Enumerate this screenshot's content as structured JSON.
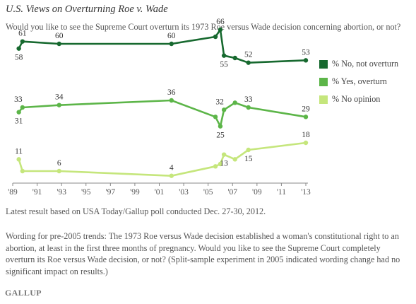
{
  "title": "U.S. Views on Overturning Roe v. Wade",
  "subtitle": "Would you like to see the Supreme Court overturn its 1973 Roe versus Wade decision concerning abortion, or not?",
  "note_latest": "Latest result based on USA Today/Gallup poll conducted Dec. 27-30, 2012.",
  "note_wording": "Wording for pre-2005 trends: The 1973 Roe versus Wade decision established a woman's constitutional right to an abortion, at least in the first three months of pregnancy. Would you like to see the Supreme Court completely overturn its Roe versus Wade decision, or not? (Split-sample experiment in 2005 indicated wording change had no significant impact on results.)",
  "brand": "GALLUP",
  "chart_data": {
    "type": "line",
    "x_tick_labels": [
      "'89",
      "'91",
      "'93",
      "'95",
      "'97",
      "'99",
      "'01",
      "'03",
      "'05",
      "'07",
      "'09",
      "'11",
      "'13"
    ],
    "x_tick_years": [
      1989,
      1991,
      1993,
      1995,
      1997,
      1999,
      2001,
      2003,
      2005,
      2007,
      2009,
      2011,
      2013
    ],
    "xlim": [
      1989,
      2013
    ],
    "ylim": [
      0,
      75
    ],
    "grid": false,
    "legend_position": "right",
    "series": [
      {
        "name": "% No, not overturn",
        "color": "#17692f",
        "points": [
          [
            1989.5,
            58
          ],
          [
            1989.8,
            61
          ],
          [
            1992.8,
            60
          ],
          [
            2002.0,
            60
          ],
          [
            2005.6,
            63
          ],
          [
            2006.0,
            66
          ],
          [
            2006.3,
            55
          ],
          [
            2007.2,
            54
          ],
          [
            2008.3,
            52
          ],
          [
            2013.0,
            53
          ]
        ],
        "labels": [
          {
            "i": 0,
            "text": "58",
            "pos": "below"
          },
          {
            "i": 1,
            "text": "61",
            "pos": "above"
          },
          {
            "i": 2,
            "text": "60",
            "pos": "above"
          },
          {
            "i": 3,
            "text": "60",
            "pos": "above"
          },
          {
            "i": 5,
            "text": "66",
            "pos": "above"
          },
          {
            "i": 6,
            "text": "55",
            "pos": "below"
          },
          {
            "i": 8,
            "text": "52",
            "pos": "above"
          },
          {
            "i": 9,
            "text": "53",
            "pos": "above"
          }
        ]
      },
      {
        "name": "% Yes, overturn",
        "color": "#5cb548",
        "points": [
          [
            1989.5,
            31
          ],
          [
            1989.8,
            33
          ],
          [
            1992.8,
            34
          ],
          [
            2002.0,
            36
          ],
          [
            2005.6,
            29
          ],
          [
            2006.0,
            25
          ],
          [
            2006.3,
            32
          ],
          [
            2007.2,
            35
          ],
          [
            2008.3,
            33
          ],
          [
            2013.0,
            29
          ]
        ],
        "labels": [
          {
            "i": 0,
            "text": "31",
            "pos": "below"
          },
          {
            "i": 1,
            "text": "33",
            "pos": "above-left"
          },
          {
            "i": 2,
            "text": "34",
            "pos": "above"
          },
          {
            "i": 3,
            "text": "36",
            "pos": "above"
          },
          {
            "i": 5,
            "text": "25",
            "pos": "below"
          },
          {
            "i": 6,
            "text": "32",
            "pos": "above-left"
          },
          {
            "i": 8,
            "text": "33",
            "pos": "above"
          },
          {
            "i": 9,
            "text": "29",
            "pos": "above"
          }
        ]
      },
      {
        "name": "% No opinion",
        "color": "#c5e67c",
        "points": [
          [
            1989.5,
            11
          ],
          [
            1989.8,
            6
          ],
          [
            1992.8,
            6
          ],
          [
            2002.0,
            4
          ],
          [
            2005.6,
            8
          ],
          [
            2006.0,
            9
          ],
          [
            2006.3,
            13
          ],
          [
            2007.2,
            11
          ],
          [
            2008.3,
            15
          ],
          [
            2013.0,
            18
          ]
        ],
        "labels": [
          {
            "i": 0,
            "text": "11",
            "pos": "above"
          },
          {
            "i": 2,
            "text": "6",
            "pos": "above"
          },
          {
            "i": 3,
            "text": "4",
            "pos": "above"
          },
          {
            "i": 6,
            "text": "13",
            "pos": "below"
          },
          {
            "i": 8,
            "text": "15",
            "pos": "below"
          },
          {
            "i": 9,
            "text": "18",
            "pos": "above"
          }
        ]
      }
    ]
  }
}
